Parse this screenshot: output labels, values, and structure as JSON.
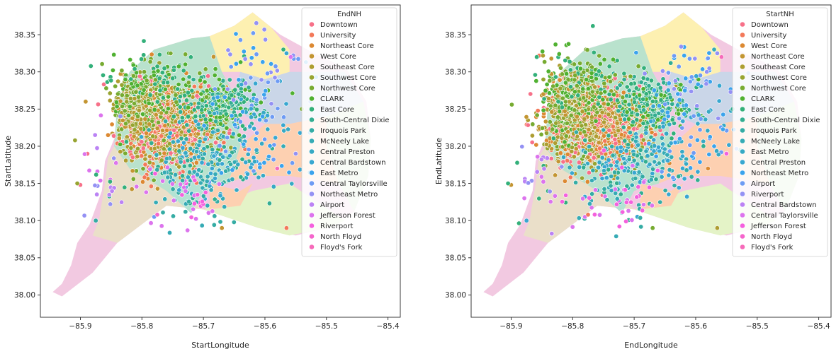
{
  "chart_data": [
    {
      "type": "scatter",
      "title": "",
      "xlabel": "StartLongitude",
      "ylabel": "StartLatitude",
      "xlim": [
        -85.965,
        -85.38
      ],
      "ylim": [
        37.97,
        38.39
      ],
      "x_ticks": [
        -85.9,
        -85.8,
        -85.7,
        -85.6,
        -85.5,
        -85.4
      ],
      "x_tick_labels": [
        "−85.9",
        "−85.8",
        "−85.7",
        "−85.6",
        "−85.5",
        "−85.4"
      ],
      "y_ticks": [
        38.0,
        38.05,
        38.1,
        38.15,
        38.2,
        38.25,
        38.3,
        38.35
      ],
      "y_tick_labels": [
        "38.00",
        "38.05",
        "38.10",
        "38.15",
        "38.20",
        "38.25",
        "38.30",
        "38.35"
      ],
      "grid": false,
      "legend_position": "top-right",
      "legend_title": "EndNH",
      "legend": [
        {
          "name": "Downtown",
          "color": "#f77189"
        },
        {
          "name": "University",
          "color": "#f3795a"
        },
        {
          "name": "Northeast Core",
          "color": "#dc8932"
        },
        {
          "name": "West Core",
          "color": "#c39532"
        },
        {
          "name": "Southeast Core",
          "color": "#ae9d31"
        },
        {
          "name": "Southwest Core",
          "color": "#97a431"
        },
        {
          "name": "Northwest Core",
          "color": "#77ab31"
        },
        {
          "name": "CLARK",
          "color": "#50b131"
        },
        {
          "name": "East Core",
          "color": "#33b07a"
        },
        {
          "name": "South-Central Dixie",
          "color": "#34ae91"
        },
        {
          "name": "Iroquois Park",
          "color": "#35aca4"
        },
        {
          "name": "McNeely Lake",
          "color": "#36abb5"
        },
        {
          "name": "Central Preston",
          "color": "#37a9c4"
        },
        {
          "name": "Central Bardstown",
          "color": "#39a7d0"
        },
        {
          "name": "East Metro",
          "color": "#3ba3ec"
        },
        {
          "name": "Central Taylorsville",
          "color": "#6e9bf4"
        },
        {
          "name": "Northeast Metro",
          "color": "#9491f4"
        },
        {
          "name": "Airport",
          "color": "#bb83f4"
        },
        {
          "name": "Jefferson Forest",
          "color": "#dc74ed"
        },
        {
          "name": "Riverport",
          "color": "#f461dd"
        },
        {
          "name": "North Floyd",
          "color": "#f565cc"
        },
        {
          "name": "Floyd's Fork",
          "color": "#f66bba"
        }
      ]
    },
    {
      "type": "scatter",
      "title": "",
      "xlabel": "EndLongitude",
      "ylabel": "EndLatitude",
      "xlim": [
        -85.965,
        -85.38
      ],
      "ylim": [
        37.97,
        38.39
      ],
      "x_ticks": [
        -85.9,
        -85.8,
        -85.7,
        -85.6,
        -85.5,
        -85.4
      ],
      "x_tick_labels": [
        "−85.9",
        "−85.8",
        "−85.7",
        "−85.6",
        "−85.5",
        "−85.4"
      ],
      "y_ticks": [
        38.0,
        38.05,
        38.1,
        38.15,
        38.2,
        38.25,
        38.3,
        38.35
      ],
      "y_tick_labels": [
        "38.00",
        "38.05",
        "38.10",
        "38.15",
        "38.20",
        "38.25",
        "38.30",
        "38.35"
      ],
      "grid": false,
      "legend_position": "top-right",
      "legend_title": "StartNH",
      "legend": [
        {
          "name": "Downtown",
          "color": "#f77189"
        },
        {
          "name": "University",
          "color": "#f3795a"
        },
        {
          "name": "West Core",
          "color": "#dc8932"
        },
        {
          "name": "Northeast Core",
          "color": "#c39532"
        },
        {
          "name": "Southeast Core",
          "color": "#ae9d31"
        },
        {
          "name": "Southwest Core",
          "color": "#97a431"
        },
        {
          "name": "Northwest Core",
          "color": "#77ab31"
        },
        {
          "name": "CLARK",
          "color": "#50b131"
        },
        {
          "name": "East Core",
          "color": "#33b07a"
        },
        {
          "name": "South-Central Dixie",
          "color": "#34ae91"
        },
        {
          "name": "Iroquois Park",
          "color": "#35aca4"
        },
        {
          "name": "McNeely Lake",
          "color": "#36abb5"
        },
        {
          "name": "East Metro",
          "color": "#37a9c4"
        },
        {
          "name": "Central Preston",
          "color": "#39a7d0"
        },
        {
          "name": "Northeast Metro",
          "color": "#3ba3ec"
        },
        {
          "name": "Airport",
          "color": "#6e9bf4"
        },
        {
          "name": "Riverport",
          "color": "#9491f4"
        },
        {
          "name": "Central Bardstown",
          "color": "#bb83f4"
        },
        {
          "name": "Central Taylorsville",
          "color": "#dc74ed"
        },
        {
          "name": "Jefferson Forest",
          "color": "#f461dd"
        },
        {
          "name": "North Floyd",
          "color": "#f565cc"
        },
        {
          "name": "Floyd's Fork",
          "color": "#f66bba"
        }
      ]
    }
  ],
  "map_regions": [
    {
      "name": "north-floyd",
      "color": "#f2c9e1"
    },
    {
      "name": "south-central",
      "color": "#eadfc9"
    },
    {
      "name": "central-green",
      "color": "#b9e2cd"
    },
    {
      "name": "northeast-yellow",
      "color": "#fdf0b1"
    },
    {
      "name": "northeast-blue",
      "color": "#cad6e8"
    },
    {
      "name": "east-light-green",
      "color": "#e4f3c7"
    },
    {
      "name": "east-metro-green",
      "color": "#cfe8c4"
    },
    {
      "name": "peach",
      "color": "#fdd0b1"
    },
    {
      "name": "bardstown-teal",
      "color": "#b3e3d3"
    }
  ]
}
